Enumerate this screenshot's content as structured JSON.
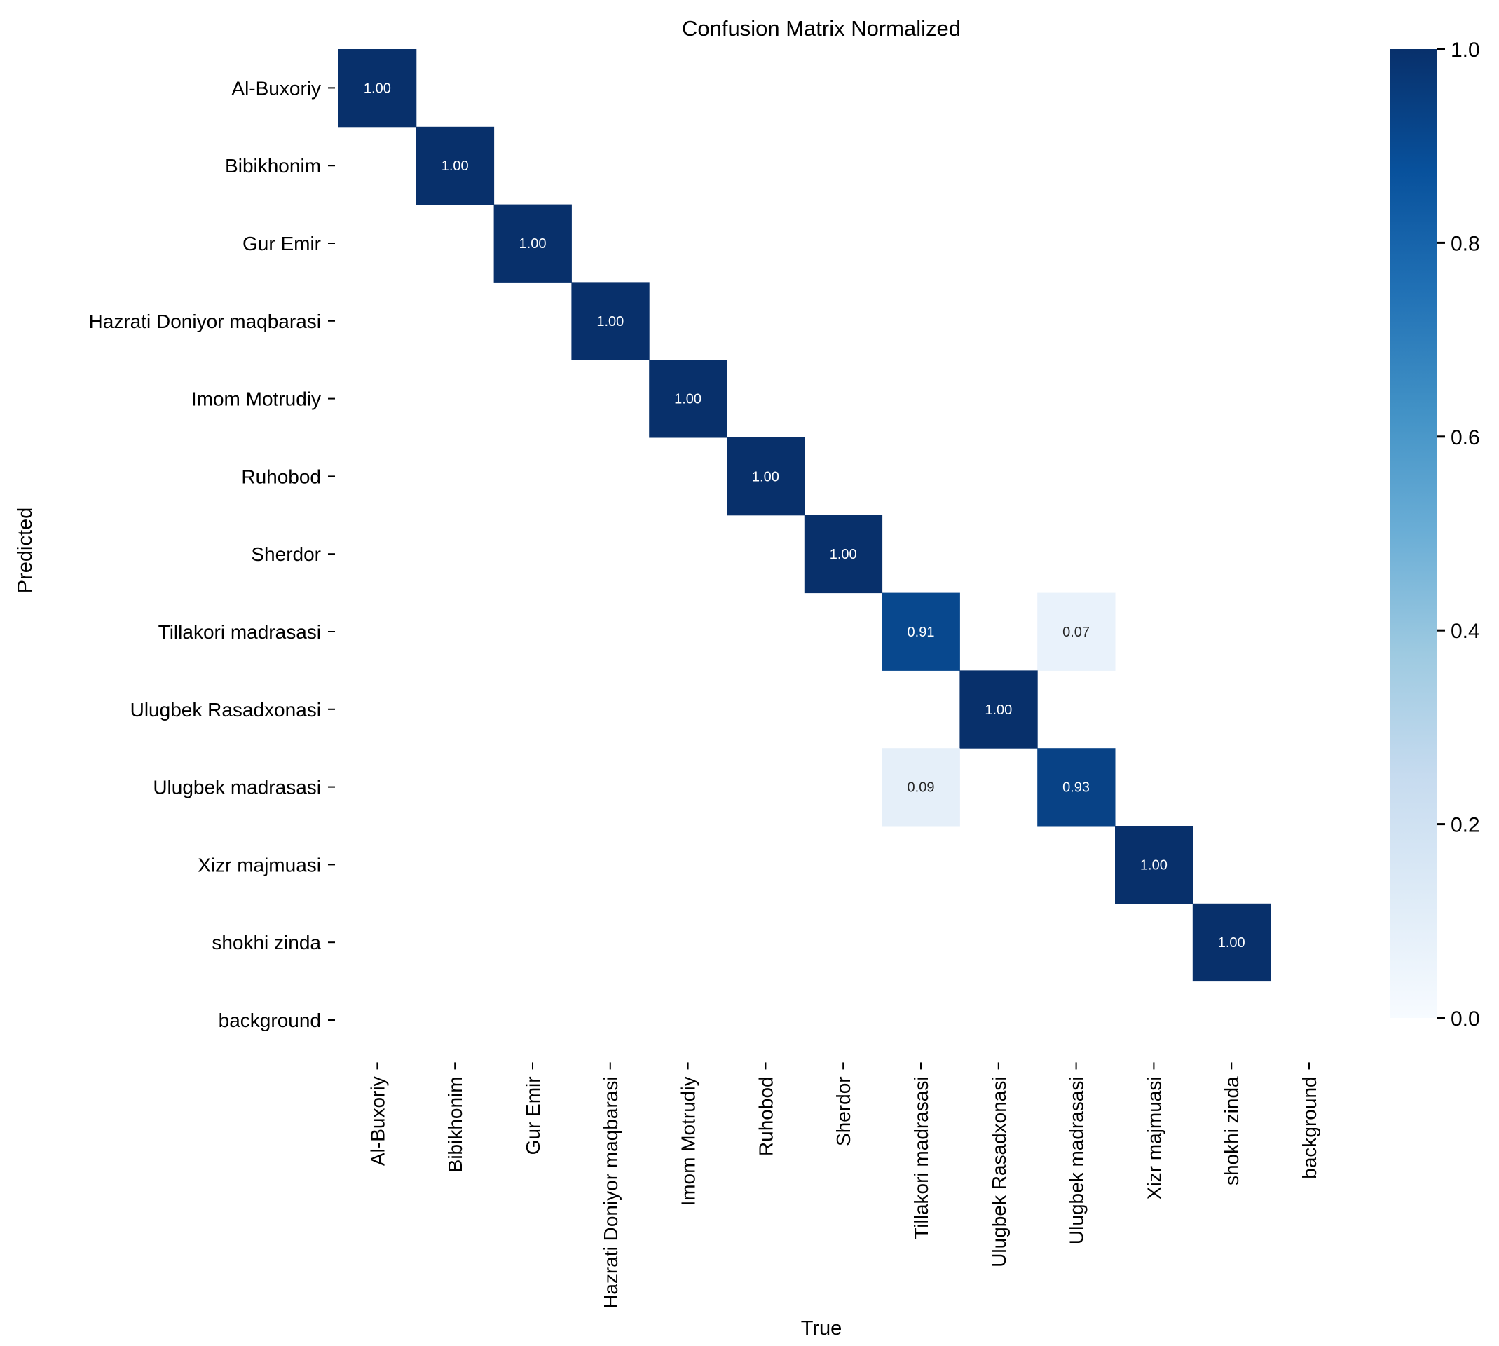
{
  "chart_data": {
    "type": "heatmap",
    "title": "Confusion Matrix Normalized",
    "xlabel": "True",
    "ylabel": "Predicted",
    "categories": [
      "Al-Buxoriy",
      "Bibikhonim",
      "Gur Emir",
      "Hazrati Doniyor maqbarasi",
      "Imom Motrudiy",
      "Ruhobod",
      "Sherdor",
      "Tillakori madrasasi",
      "Ulugbek Rasadxonasi",
      "Ulugbek madrasasi",
      "Xizr majmuasi",
      "shokhi zinda",
      "background"
    ],
    "cells": [
      {
        "row": "Al-Buxoriy",
        "col": "Al-Buxoriy",
        "value": 1.0,
        "label": "1.00"
      },
      {
        "row": "Bibikhonim",
        "col": "Bibikhonim",
        "value": 1.0,
        "label": "1.00"
      },
      {
        "row": "Gur Emir",
        "col": "Gur Emir",
        "value": 1.0,
        "label": "1.00"
      },
      {
        "row": "Hazrati Doniyor maqbarasi",
        "col": "Hazrati Doniyor maqbarasi",
        "value": 1.0,
        "label": "1.00"
      },
      {
        "row": "Imom Motrudiy",
        "col": "Imom Motrudiy",
        "value": 1.0,
        "label": "1.00"
      },
      {
        "row": "Ruhobod",
        "col": "Ruhobod",
        "value": 1.0,
        "label": "1.00"
      },
      {
        "row": "Sherdor",
        "col": "Sherdor",
        "value": 1.0,
        "label": "1.00"
      },
      {
        "row": "Tillakori madrasasi",
        "col": "Tillakori madrasasi",
        "value": 0.91,
        "label": "0.91"
      },
      {
        "row": "Tillakori madrasasi",
        "col": "Ulugbek madrasasi",
        "value": 0.07,
        "label": "0.07"
      },
      {
        "row": "Ulugbek Rasadxonasi",
        "col": "Ulugbek Rasadxonasi",
        "value": 1.0,
        "label": "1.00"
      },
      {
        "row": "Ulugbek madrasasi",
        "col": "Tillakori madrasasi",
        "value": 0.09,
        "label": "0.09"
      },
      {
        "row": "Ulugbek madrasasi",
        "col": "Ulugbek madrasasi",
        "value": 0.93,
        "label": "0.93"
      },
      {
        "row": "Xizr majmuasi",
        "col": "Xizr majmuasi",
        "value": 1.0,
        "label": "1.00"
      },
      {
        "row": "shokhi zinda",
        "col": "shokhi zinda",
        "value": 1.0,
        "label": "1.00"
      }
    ],
    "colorbar": {
      "range": [
        0,
        1
      ],
      "ticks": [
        "0.0",
        "0.2",
        "0.4",
        "0.6",
        "0.8",
        "1.0"
      ]
    },
    "colormap": "Blues",
    "grid": false
  }
}
